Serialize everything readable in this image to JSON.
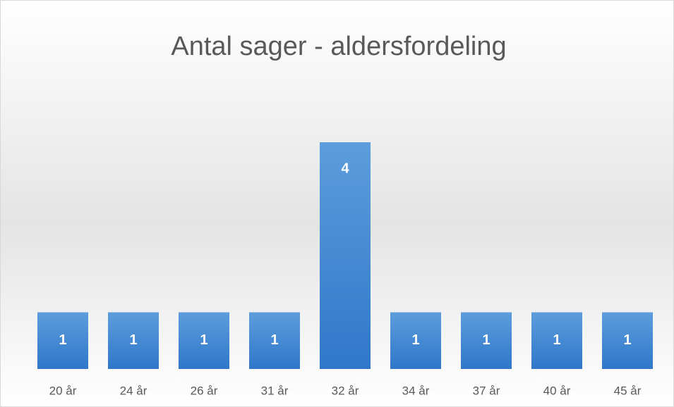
{
  "chart_data": {
    "type": "bar",
    "title": "Antal sager - aldersfordeling",
    "categories": [
      "20 år",
      "24 år",
      "26 år",
      "31 år",
      "32 år",
      "34 år",
      "37 år",
      "40 år",
      "45 år"
    ],
    "values": [
      1,
      1,
      1,
      1,
      4,
      1,
      1,
      1,
      1
    ],
    "color": "#4a8ad4"
  }
}
